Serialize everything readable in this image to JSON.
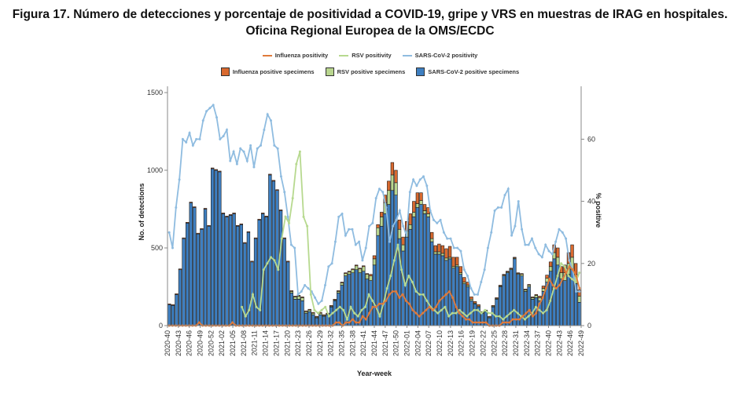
{
  "title_line1": "Figura 17. Número de detecciones y porcentaje de positividad a COVID-19, gripe y VRS en muestras de IRAG en hospitales.",
  "title_line2": "Oficina Regional Europea de la OMS/ECDC",
  "legend": {
    "flu_pos": "Influenza positivity",
    "rsv_pos": "RSV positivity",
    "cov_pos": "SARS-CoV-2 positivity",
    "flu_spec": "Influenza positive specimens",
    "rsv_spec": "RSV positive specimens",
    "cov_spec": "SARS-CoV-2 positive specimens"
  },
  "colors": {
    "influenza": "#d9692e",
    "rsv": "#b9d68f",
    "sarscov2": "#3e7fc1",
    "bar_stroke": "#1a1a1a",
    "flu_line": "#e07a3a",
    "rsv_line": "#b7d98f",
    "cov_line": "#8fbce0"
  },
  "chart_data": {
    "type": "bar",
    "xlabel": "Year-week",
    "ylabel": "No. of detections",
    "y2label": "% positive",
    "ylim": [
      0,
      1500
    ],
    "y2lim": [
      0,
      75
    ],
    "yticks": [
      0,
      500,
      1000,
      1500
    ],
    "y2ticks": [
      0,
      20,
      40,
      60
    ],
    "xtick_labels": [
      "2020-40",
      "2020-43",
      "2020-46",
      "2020-49",
      "2020-52",
      "2021-02",
      "2021-05",
      "2021-08",
      "2021-11",
      "2021-14",
      "2021-17",
      "2021-20",
      "2021-23",
      "2021-26",
      "2021-29",
      "2021-32",
      "2021-35",
      "2021-38",
      "2021-41",
      "2021-44",
      "2021-47",
      "2021-50",
      "2022-01",
      "2022-04",
      "2022-07",
      "2022-10",
      "2022-13",
      "2022-16",
      "2022-19",
      "2022-22",
      "2022-25",
      "2022-28",
      "2022-31",
      "2022-34",
      "2022-37",
      "2022-40",
      "2022-43",
      "2022-46",
      "2022-49"
    ],
    "series": [
      {
        "name": "SARS-CoV-2 positive specimens",
        "kind": "bar",
        "values": [
          135,
          130,
          200,
          360,
          560,
          660,
          790,
          760,
          590,
          620,
          750,
          640,
          1010,
          1000,
          990,
          720,
          700,
          710,
          720,
          640,
          650,
          530,
          600,
          410,
          560,
          680,
          720,
          700,
          970,
          930,
          870,
          740,
          560,
          410,
          210,
          170,
          170,
          160,
          80,
          90,
          70,
          50,
          70,
          60,
          70,
          120,
          160,
          210,
          260,
          320,
          330,
          340,
          360,
          340,
          350,
          300,
          290,
          390,
          580,
          640,
          720,
          780,
          870,
          840,
          560,
          480,
          570,
          620,
          700,
          760,
          780,
          720,
          700,
          540,
          460,
          460,
          450,
          420,
          430,
          370,
          380,
          330,
          270,
          250,
          160,
          140,
          120,
          80,
          90,
          50,
          120,
          170,
          250,
          320,
          340,
          360,
          430,
          330,
          320,
          220,
          250,
          170,
          180,
          160,
          220,
          280,
          350,
          430,
          390,
          300,
          290,
          330,
          360,
          270,
          150
        ]
      },
      {
        "name": "RSV positive specimens",
        "kind": "bar",
        "values": [
          0,
          0,
          0,
          0,
          0,
          0,
          0,
          0,
          0,
          0,
          0,
          0,
          0,
          0,
          0,
          0,
          0,
          0,
          0,
          0,
          0,
          0,
          0,
          0,
          0,
          0,
          0,
          0,
          0,
          0,
          0,
          0,
          0,
          0,
          10,
          15,
          20,
          20,
          10,
          10,
          10,
          5,
          10,
          5,
          5,
          5,
          5,
          10,
          15,
          15,
          15,
          20,
          25,
          25,
          30,
          30,
          30,
          40,
          50,
          60,
          70,
          90,
          100,
          80,
          60,
          40,
          40,
          30,
          30,
          25,
          25,
          20,
          20,
          20,
          15,
          15,
          15,
          15,
          10,
          10,
          10,
          10,
          10,
          10,
          10,
          5,
          5,
          5,
          5,
          5,
          5,
          5,
          5,
          5,
          5,
          5,
          5,
          5,
          10,
          10,
          10,
          10,
          15,
          20,
          20,
          25,
          30,
          40,
          50,
          40,
          50,
          70,
          80,
          60,
          40
        ]
      },
      {
        "name": "Influenza positive specimens",
        "kind": "bar",
        "values": [
          5,
          5,
          5,
          5,
          5,
          5,
          5,
          5,
          5,
          5,
          5,
          5,
          5,
          5,
          5,
          5,
          5,
          5,
          5,
          5,
          5,
          5,
          5,
          5,
          5,
          5,
          5,
          5,
          5,
          5,
          5,
          5,
          5,
          5,
          5,
          5,
          5,
          5,
          5,
          5,
          5,
          5,
          5,
          5,
          5,
          5,
          5,
          5,
          5,
          5,
          5,
          5,
          5,
          5,
          5,
          5,
          10,
          20,
          20,
          30,
          50,
          60,
          80,
          80,
          60,
          50,
          60,
          70,
          70,
          70,
          50,
          40,
          40,
          40,
          40,
          50,
          50,
          60,
          70,
          60,
          50,
          40,
          30,
          20,
          15,
          10,
          10,
          5,
          5,
          5,
          5,
          5,
          5,
          5,
          5,
          5,
          5,
          5,
          5,
          5,
          5,
          5,
          5,
          10,
          15,
          20,
          30,
          50,
          60,
          40,
          50,
          70,
          80,
          70,
          40
        ]
      },
      {
        "name": "SARS-CoV-2 positivity",
        "kind": "line",
        "axis": "y2",
        "values": [
          30,
          25,
          38,
          47,
          60,
          59,
          62,
          58,
          60,
          60,
          66,
          69,
          70,
          71,
          67,
          60,
          61,
          63,
          53,
          56,
          52,
          57,
          56,
          53,
          58,
          51,
          57,
          58,
          63,
          68,
          66,
          58,
          57,
          48,
          43,
          35,
          26,
          25,
          10,
          11,
          13,
          12,
          11,
          9,
          7,
          8,
          13,
          19,
          20,
          27,
          35,
          36,
          29,
          31,
          31,
          26,
          27,
          21,
          25,
          32,
          33,
          41,
          44,
          43,
          38,
          27,
          32,
          34,
          37,
          32,
          29,
          43,
          47,
          45,
          47,
          48,
          45,
          37,
          34,
          33,
          34,
          30,
          28,
          28,
          25,
          25,
          24,
          18,
          16,
          12,
          10,
          10,
          14,
          18,
          25,
          30,
          37,
          38,
          38,
          42,
          44,
          29,
          32,
          40,
          31,
          26,
          26,
          28,
          25,
          23,
          22,
          26,
          24,
          23,
          27,
          31,
          30,
          28,
          21,
          18,
          11,
          11
        ]
      },
      {
        "name": "RSV positivity",
        "kind": "line",
        "axis": "y2",
        "values": [
          null,
          null,
          null,
          null,
          null,
          null,
          null,
          null,
          null,
          null,
          null,
          null,
          null,
          null,
          null,
          null,
          null,
          null,
          null,
          null,
          6,
          3,
          5,
          10,
          6,
          5,
          18,
          20,
          22,
          21,
          18,
          28,
          35,
          33,
          41,
          52,
          56,
          35,
          32,
          10,
          5,
          4,
          5,
          6,
          3,
          4,
          5,
          6,
          5,
          2,
          6,
          4,
          3,
          5,
          6,
          10,
          8,
          6,
          3,
          7,
          12,
          16,
          21,
          26,
          18,
          13,
          16,
          14,
          11,
          10,
          10,
          8,
          6,
          5,
          4,
          5,
          6,
          3,
          4,
          4,
          5,
          4,
          3,
          4,
          5,
          5,
          4,
          5,
          4,
          4,
          3,
          3,
          2,
          3,
          4,
          5,
          4,
          3,
          2,
          3,
          4,
          6,
          5,
          4,
          5,
          8,
          12,
          16,
          20,
          19,
          16,
          15,
          14,
          17
        ]
      },
      {
        "name": "Influenza positivity",
        "kind": "line",
        "axis": "y2",
        "values": [
          0,
          0,
          0,
          0,
          0,
          0,
          0,
          0,
          0,
          1,
          0,
          0,
          0,
          0,
          0,
          0,
          0,
          0,
          0,
          1,
          0,
          0,
          0,
          0,
          0,
          0,
          0,
          0,
          0,
          0,
          0,
          0,
          0,
          0,
          0,
          0,
          0,
          0,
          0,
          0,
          0,
          0,
          0,
          0,
          0,
          0,
          0,
          0,
          0,
          0,
          1,
          1,
          0,
          1,
          1,
          2,
          1,
          1,
          3,
          2,
          4,
          6,
          6,
          7,
          7,
          8,
          10,
          11,
          11,
          9,
          10,
          8,
          7,
          5,
          4,
          3,
          4,
          5,
          6,
          5,
          6,
          8,
          9,
          10,
          11,
          9,
          6,
          4,
          3,
          2,
          2,
          1,
          1,
          1,
          1,
          1,
          0,
          0,
          0,
          0,
          1,
          1,
          1,
          2,
          2,
          2,
          3,
          4,
          5,
          3,
          4,
          7,
          9,
          12,
          15,
          13,
          12,
          13,
          15,
          17,
          19,
          18,
          16,
          12
        ]
      }
    ]
  }
}
